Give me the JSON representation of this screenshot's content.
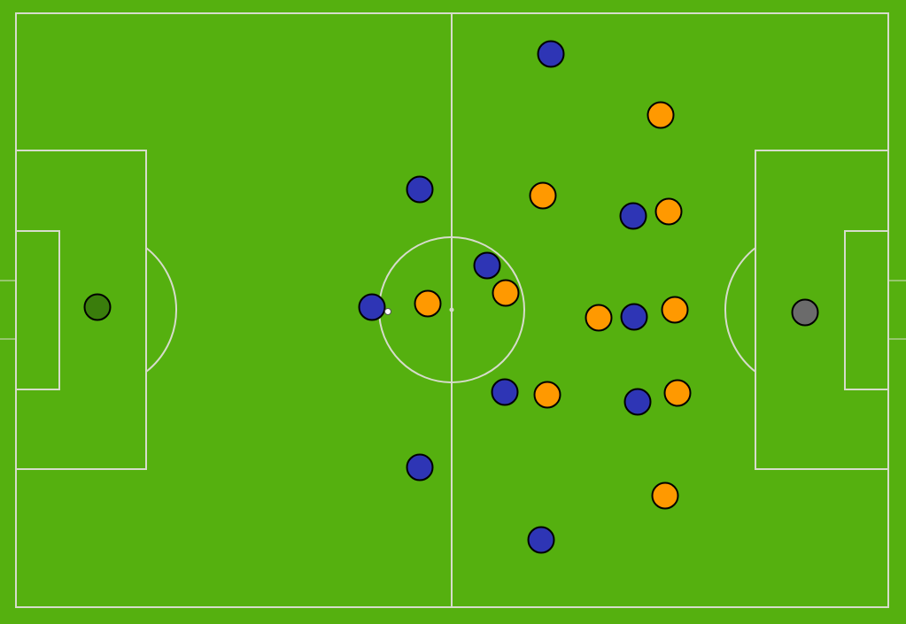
{
  "colors": {
    "pitch": "#55b00f",
    "lines": "#d6dccb",
    "team_left": "#2e35b5",
    "team_right": "#ff9900",
    "goalkeeper_left": "#3a7d0c",
    "goalkeeper_right": "#6b6b6b",
    "ball": "#ffffff"
  },
  "teams": [
    {
      "side": "left",
      "players_on_pitch": 11
    },
    {
      "side": "right",
      "players_on_pitch": 11
    }
  ]
}
